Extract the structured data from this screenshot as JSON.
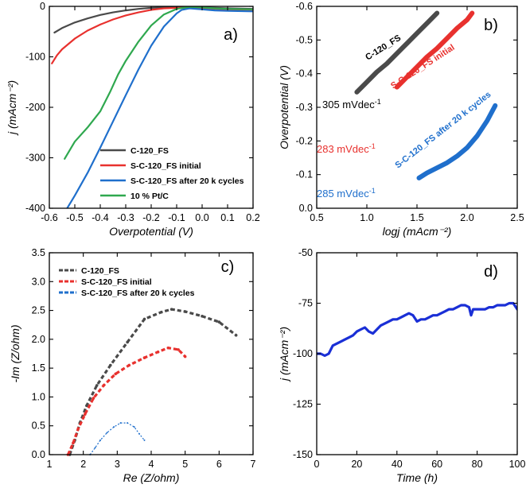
{
  "chart_data": [
    {
      "panel": "a)",
      "type": "line",
      "xlabel": "Overpotential (V)",
      "ylabel": "j (mAcm⁻²)",
      "xlim": [
        -0.6,
        0.2
      ],
      "ylim": [
        -400,
        0
      ],
      "xticks": [
        -0.6,
        -0.5,
        -0.4,
        -0.3,
        -0.2,
        -0.1,
        0.0,
        0.1,
        0.2
      ],
      "xtick_labels": [
        "-0.6",
        "-0.5",
        "-0.4",
        "-0.3",
        "-0.2",
        "-0.1",
        "0.0",
        "0.1",
        "0.2"
      ],
      "yticks": [
        0,
        -100,
        -200,
        -300,
        -400
      ],
      "ytick_labels": [
        "0",
        "-100",
        "-200",
        "-300",
        "-400"
      ],
      "legend": [
        "C-120_FS",
        "S-C-120_FS initial",
        "S-C-120_FS after 20 k cycles",
        "10 % Pt/C"
      ],
      "series": [
        {
          "name": "C-120_FS",
          "color": "#4a4a4a",
          "x": [
            -0.58,
            -0.55,
            -0.5,
            -0.45,
            -0.4,
            -0.35,
            -0.3,
            -0.25,
            -0.2,
            -0.15,
            -0.1,
            -0.05,
            0.0,
            0.05,
            0.1,
            0.2
          ],
          "y": [
            -52,
            -43,
            -32,
            -24,
            -17,
            -12,
            -8,
            -5,
            -3,
            -2,
            -1.5,
            -1.5,
            -2,
            -3,
            -4,
            -5
          ]
        },
        {
          "name": "S-C-120_FS initial",
          "color": "#e8312e",
          "x": [
            -0.59,
            -0.57,
            -0.55,
            -0.5,
            -0.45,
            -0.4,
            -0.35,
            -0.3,
            -0.25,
            -0.2,
            -0.15,
            -0.1,
            -0.05,
            0.0,
            0.05,
            0.1,
            0.2
          ],
          "y": [
            -113,
            -97,
            -85,
            -64,
            -48,
            -36,
            -26,
            -18,
            -12,
            -7,
            -4,
            -3,
            -3,
            -4,
            -5,
            -6,
            -7
          ]
        },
        {
          "name": "S-C-120_FS after 20 k cycles",
          "color": "#1f6fcc",
          "x": [
            -0.53,
            -0.5,
            -0.45,
            -0.4,
            -0.35,
            -0.3,
            -0.25,
            -0.2,
            -0.15,
            -0.1,
            -0.08,
            -0.05,
            0.0,
            0.05,
            0.1,
            0.2
          ],
          "y": [
            -400,
            -375,
            -330,
            -280,
            -228,
            -176,
            -125,
            -78,
            -40,
            -14,
            -7,
            -4,
            -6,
            -8,
            -9,
            -10
          ]
        },
        {
          "name": "10 % Pt/C",
          "color": "#2fa84f",
          "x": [
            -0.54,
            -0.5,
            -0.45,
            -0.4,
            -0.36,
            -0.33,
            -0.3,
            -0.25,
            -0.2,
            -0.15,
            -0.1,
            -0.05,
            0.0,
            0.05,
            0.1,
            0.2
          ],
          "y": [
            -302,
            -268,
            -240,
            -208,
            -168,
            -135,
            -108,
            -70,
            -38,
            -16,
            -5,
            -1,
            -2,
            -4,
            -5,
            -6
          ]
        }
      ]
    },
    {
      "panel": "b)",
      "type": "line",
      "xlabel": "logj (mAcm⁻²)",
      "ylabel": "Overpotential (V)",
      "xlim": [
        0.5,
        2.5
      ],
      "ylim": [
        0.0,
        -0.6
      ],
      "xticks": [
        0.5,
        1.0,
        1.5,
        2.0,
        2.5
      ],
      "xtick_labels": [
        "0.5",
        "1.0",
        "1.5",
        "2.0",
        "2.5"
      ],
      "yticks": [
        0.0,
        -0.1,
        -0.2,
        -0.3,
        -0.4,
        -0.5,
        -0.6
      ],
      "ytick_labels": [
        "0.0",
        "-0.1",
        "-0.2",
        "-0.3",
        "-0.4",
        "-0.5",
        "-0.6"
      ],
      "annotations": [
        {
          "text": "305 mVdec",
          "sup": "-1",
          "color": "#000000"
        },
        {
          "text": "283 mVdec",
          "sup": "-1",
          "color": "#e8312e"
        },
        {
          "text": "285 mVdec",
          "sup": "-1",
          "color": "#1f6fcc"
        }
      ],
      "curve_labels": [
        "C-120_FS",
        "S-C-120_FS initial",
        "S-C-120_FS after 20 k cycles"
      ],
      "series": [
        {
          "name": "C-120_FS",
          "color": "#4a4a4a",
          "x": [
            0.9,
            1.0,
            1.1,
            1.2,
            1.3,
            1.4,
            1.5,
            1.6,
            1.7
          ],
          "y": [
            -0.345,
            -0.375,
            -0.405,
            -0.43,
            -0.46,
            -0.49,
            -0.52,
            -0.55,
            -0.58
          ]
        },
        {
          "name": "S-C-120_FS initial",
          "color": "#e8312e",
          "x": [
            1.3,
            1.4,
            1.5,
            1.6,
            1.7,
            1.8,
            1.9,
            2.0,
            2.05
          ],
          "y": [
            -0.36,
            -0.39,
            -0.42,
            -0.45,
            -0.475,
            -0.505,
            -0.535,
            -0.56,
            -0.58
          ]
        },
        {
          "name": "S-C-120_FS after 20 k cycles",
          "color": "#1f6fcc",
          "x": [
            1.52,
            1.6,
            1.7,
            1.8,
            1.9,
            2.0,
            2.1,
            2.2,
            2.28
          ],
          "y": [
            -0.09,
            -0.105,
            -0.12,
            -0.135,
            -0.155,
            -0.18,
            -0.215,
            -0.26,
            -0.305
          ]
        }
      ]
    },
    {
      "panel": "c)",
      "type": "scatter",
      "xlabel": "Re (Z/ohm)",
      "ylabel": "-Im (Z/ohm)",
      "xlim": [
        1,
        7
      ],
      "ylim": [
        0,
        3.5
      ],
      "xticks": [
        1,
        2,
        3,
        4,
        5,
        6,
        7
      ],
      "xtick_labels": [
        "1",
        "2",
        "3",
        "4",
        "5",
        "6",
        "7"
      ],
      "yticks": [
        0.0,
        0.5,
        1.0,
        1.5,
        2.0,
        2.5,
        3.0,
        3.5
      ],
      "ytick_labels": [
        "0.0",
        "0.5",
        "1.0",
        "1.5",
        "2.0",
        "2.5",
        "3.0",
        "3.5"
      ],
      "legend": [
        "C-120_FS",
        "S-C-120_FS initial",
        "S-C-120_FS after 20 k cycles"
      ],
      "series": [
        {
          "name": "C-120_FS",
          "color": "#4a4a4a",
          "x": [
            1.6,
            1.75,
            1.9,
            2.1,
            2.4,
            2.8,
            3.3,
            3.8,
            4.3,
            4.6,
            5.0,
            5.5,
            6.0,
            6.5
          ],
          "y": [
            0.0,
            0.25,
            0.55,
            0.85,
            1.2,
            1.55,
            1.95,
            2.35,
            2.47,
            2.52,
            2.48,
            2.4,
            2.3,
            2.07
          ]
        },
        {
          "name": "S-C-120_FS initial",
          "color": "#e8312e",
          "x": [
            1.55,
            1.7,
            1.85,
            2.05,
            2.3,
            2.6,
            2.95,
            3.35,
            3.8,
            4.2,
            4.5,
            4.8,
            5.0
          ],
          "y": [
            0.0,
            0.2,
            0.45,
            0.7,
            0.98,
            1.2,
            1.4,
            1.55,
            1.68,
            1.78,
            1.85,
            1.82,
            1.7
          ]
        },
        {
          "name": "S-C-120_FS after 20 k cycles",
          "color": "#1f6fcc",
          "x": [
            2.2,
            2.35,
            2.5,
            2.7,
            2.9,
            3.1,
            3.3,
            3.5,
            3.65,
            3.8
          ],
          "y": [
            0.0,
            0.12,
            0.25,
            0.38,
            0.48,
            0.55,
            0.55,
            0.48,
            0.36,
            0.25
          ]
        }
      ]
    },
    {
      "panel": "d)",
      "type": "line",
      "xlabel": "Time (h)",
      "ylabel": "j (mAcm⁻²)",
      "xlim": [
        0,
        100
      ],
      "ylim": [
        -150,
        -50
      ],
      "xticks": [
        0,
        20,
        40,
        60,
        80,
        100
      ],
      "xtick_labels": [
        "0",
        "20",
        "40",
        "60",
        "80",
        "100"
      ],
      "yticks": [
        -50,
        -75,
        -100,
        -125,
        -150
      ],
      "ytick_labels": [
        "-50",
        "-75",
        "-100",
        "-125",
        "-150"
      ],
      "series": [
        {
          "name": "j",
          "color": "#1a2fd6",
          "x": [
            0,
            2,
            4,
            6,
            8,
            10,
            12,
            14,
            16,
            18,
            20,
            22,
            24,
            26,
            28,
            30,
            32,
            34,
            36,
            38,
            40,
            42,
            44,
            46,
            48,
            50,
            52,
            54,
            56,
            58,
            60,
            62,
            64,
            66,
            68,
            70,
            72,
            74,
            76,
            77,
            78,
            80,
            82,
            84,
            86,
            88,
            90,
            92,
            94,
            96,
            98,
            100
          ],
          "y": [
            -100,
            -100,
            -101,
            -100,
            -96,
            -95,
            -94,
            -93,
            -92,
            -91,
            -89,
            -88,
            -87,
            -89,
            -90,
            -88,
            -86,
            -85,
            -84,
            -83,
            -83,
            -82,
            -81,
            -80,
            -81,
            -84,
            -83,
            -83,
            -82,
            -81,
            -81,
            -80,
            -79,
            -78,
            -78,
            -77,
            -76,
            -76,
            -77,
            -81,
            -78,
            -78,
            -78,
            -78,
            -77,
            -77,
            -76,
            -76,
            -76,
            -75,
            -75,
            -78
          ]
        }
      ]
    }
  ]
}
